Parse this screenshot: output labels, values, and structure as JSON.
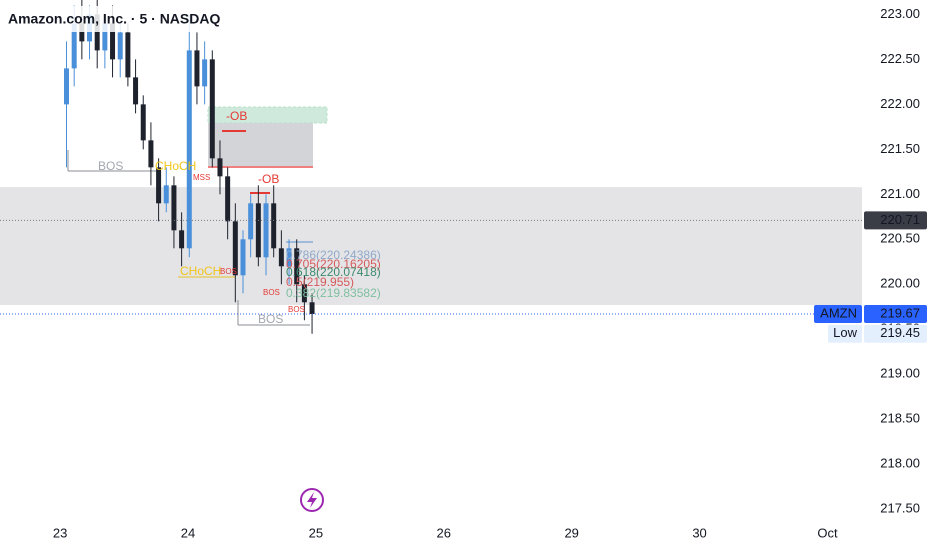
{
  "chart_data": {
    "type": "candlestick",
    "title": "Amazon.com, Inc. · 5 · NASDAQ",
    "up_color": "#4a8fd9",
    "down_color": "#1e222d",
    "x": [
      0.05,
      0.11,
      0.17,
      0.23,
      0.29,
      0.35,
      0.41,
      0.47,
      0.53,
      0.59,
      0.65,
      0.71,
      0.77,
      0.83,
      0.89,
      0.95,
      1.01,
      1.07,
      1.13,
      1.19,
      1.25,
      1.31,
      1.37,
      1.43,
      1.49,
      1.55,
      1.61,
      1.67,
      1.73,
      1.79,
      1.85,
      1.91,
      1.97
    ],
    "open": [
      222.0,
      222.4,
      222.9,
      222.7,
      223.0,
      222.6,
      222.9,
      222.5,
      222.8,
      222.3,
      222.0,
      221.6,
      221.3,
      220.9,
      221.1,
      220.6,
      220.4,
      222.6,
      222.2,
      222.5,
      221.4,
      221.2,
      220.7,
      220.1,
      220.5,
      220.9,
      220.3,
      220.9,
      220.4,
      220.2,
      220.4,
      220.0,
      219.8
    ],
    "high": [
      222.7,
      223.1,
      223.2,
      223.1,
      223.2,
      223.0,
      223.1,
      222.9,
      222.9,
      222.5,
      222.1,
      221.8,
      221.4,
      221.3,
      221.2,
      220.8,
      223.0,
      222.8,
      222.7,
      222.6,
      221.6,
      221.3,
      220.9,
      220.6,
      221.0,
      221.1,
      221.0,
      221.1,
      220.6,
      220.5,
      220.5,
      220.1,
      219.9
    ],
    "low": [
      221.3,
      222.2,
      222.5,
      222.5,
      222.4,
      222.4,
      222.3,
      222.3,
      222.2,
      221.9,
      221.5,
      221.1,
      220.7,
      220.8,
      220.4,
      220.2,
      220.3,
      222.0,
      222.0,
      221.3,
      221.0,
      220.5,
      219.8,
      219.9,
      220.3,
      220.2,
      220.1,
      220.3,
      220.0,
      220.0,
      219.8,
      219.6,
      219.45
    ],
    "close": [
      222.4,
      222.9,
      222.7,
      223.0,
      222.6,
      222.9,
      222.5,
      222.8,
      222.3,
      222.0,
      221.6,
      221.3,
      220.9,
      221.1,
      220.6,
      220.4,
      222.6,
      222.2,
      222.5,
      221.4,
      221.2,
      220.7,
      220.1,
      220.5,
      220.9,
      220.3,
      220.9,
      220.4,
      220.2,
      220.4,
      220.0,
      219.8,
      219.67
    ],
    "xlim": [
      -0.47,
      6.27
    ],
    "xticks": [
      {
        "value": 0,
        "label": "23"
      },
      {
        "value": 1,
        "label": "24"
      },
      {
        "value": 2,
        "label": "25"
      },
      {
        "value": 3,
        "label": "26"
      },
      {
        "value": 4,
        "label": "29"
      },
      {
        "value": 5,
        "label": "30"
      },
      {
        "value": 6,
        "label": "Oct"
      }
    ],
    "ylim": [
      217.38,
      223.16
    ],
    "yticks": [
      {
        "value": 217.5,
        "label": "217.50"
      },
      {
        "value": 218,
        "label": "218.00"
      },
      {
        "value": 218.5,
        "label": "218.50"
      },
      {
        "value": 219,
        "label": "219.00"
      },
      {
        "value": 219.5,
        "label": "219.50"
      },
      {
        "value": 220,
        "label": "220.00"
      },
      {
        "value": 220.5,
        "label": "220.50"
      },
      {
        "value": 221,
        "label": "221.00"
      },
      {
        "value": 221.5,
        "label": "221.50"
      },
      {
        "value": 222,
        "label": "222.00"
      },
      {
        "value": 222.5,
        "label": "222.50"
      },
      {
        "value": 223,
        "label": "223.00"
      }
    ],
    "zones": [
      {
        "from": 219.77,
        "to": 221.08,
        "color": "#e4e4e7"
      }
    ],
    "markers": [
      {
        "value": 220.71,
        "label": "220.71"
      },
      {
        "name": "AMZN",
        "value": 219.67,
        "label": "219.67"
      },
      {
        "name": "Low",
        "value": 219.45,
        "label": "219.45"
      }
    ],
    "annotations": [
      "BOS",
      "CHoCH",
      "MSS",
      "-OB",
      "-OB",
      "CHoCH",
      "BOS",
      "BOS",
      "BOS",
      "BOS",
      "0.786(220.24386)",
      "0.705(220.16205)",
      "0.618(220.07418)",
      "0.5(219.955)",
      "0.382(219.83582)"
    ]
  }
}
